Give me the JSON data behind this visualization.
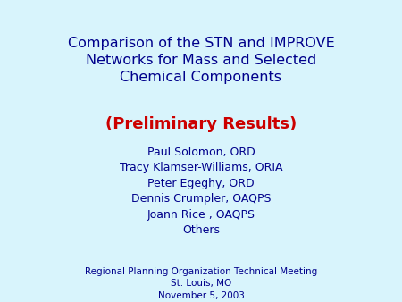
{
  "background_color": "#d8f4fc",
  "title_lines": [
    "Comparison of the STN and IMPROVE",
    "Networks for Mass and Selected",
    "Chemical Components"
  ],
  "title_color": "#00008B",
  "subtitle_line": "(Preliminary Results)",
  "subtitle_color": "#CC0000",
  "authors": [
    "Paul Solomon, ORD",
    "Tracy Klamser-Williams, ORIA",
    "Peter Egeghy, ORD",
    "Dennis Crumpler, OAQPS",
    "Joann Rice , OAQPS",
    "Others"
  ],
  "authors_color": "#00008B",
  "footer_lines": [
    "Regional Planning Organization Technical Meeting",
    "St. Louis, MO",
    "November 5, 2003"
  ],
  "footer_color": "#00008B",
  "title_fontsize": 11.5,
  "subtitle_fontsize": 13.0,
  "authors_fontsize": 9.0,
  "footer_fontsize": 7.5
}
